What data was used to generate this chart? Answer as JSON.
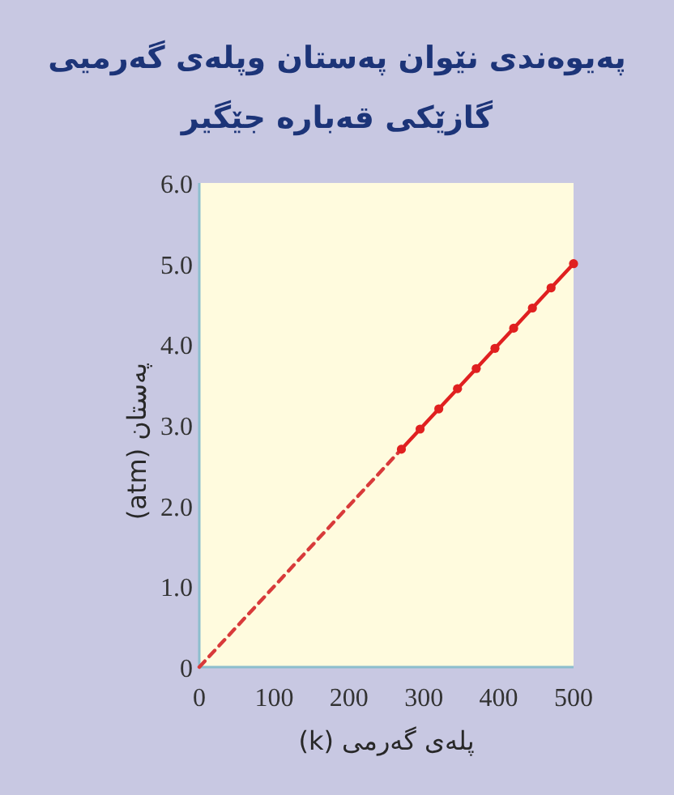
{
  "chart_data": {
    "type": "line",
    "title": "پەیوەندی نێوان پەستان وپلەی گەرمیی گازێکی قەبارە جێگیر",
    "xlabel": "پلەی گەرمی (k)",
    "ylabel": "پەستان (atm)",
    "xlim": [
      0,
      500
    ],
    "ylim": [
      0,
      6
    ],
    "xticks": [
      0,
      100,
      200,
      300,
      400,
      500
    ],
    "yticks": [
      0,
      {
        "value": 1,
        "label": "1.0"
      },
      {
        "value": 2,
        "label": "2.0"
      },
      {
        "value": 3,
        "label": "3.0"
      },
      {
        "value": 4,
        "label": "4.0"
      },
      {
        "value": 5,
        "label": "5.0"
      },
      {
        "value": 6,
        "label": "6.0"
      }
    ],
    "series": [
      {
        "color": "#d83a3a",
        "line_style": "dashed",
        "marker": "none",
        "x": [
          0,
          270
        ],
        "values": [
          0,
          2.7
        ]
      },
      {
        "color": "#e02020",
        "line_style": "solid",
        "marker": "circle",
        "x": [
          270,
          295,
          320,
          345,
          370,
          395,
          420,
          445,
          470,
          500
        ],
        "values": [
          2.7,
          2.95,
          3.2,
          3.45,
          3.7,
          3.95,
          4.2,
          4.45,
          4.7,
          5.0
        ]
      }
    ]
  }
}
